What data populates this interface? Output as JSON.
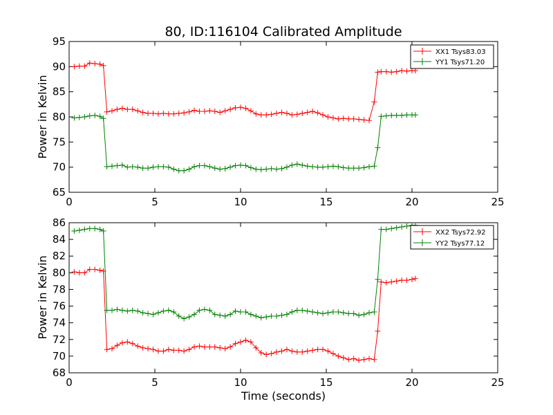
{
  "title": "80, ID:116104 Calibrated Amplitude",
  "chart_data": [
    {
      "type": "line",
      "xlabel": "",
      "ylabel": "Power in Kelvin",
      "xlim": [
        0,
        25
      ],
      "ylim": [
        65,
        95
      ],
      "xticks": [
        "0",
        "5",
        "10",
        "15",
        "20",
        "25"
      ],
      "yticks": [
        "65",
        "70",
        "75",
        "80",
        "85",
        "90",
        "95"
      ],
      "legend_position": "top-right",
      "x": [
        0.3,
        0.6,
        0.9,
        1.2,
        1.5,
        1.8,
        2.0,
        2.2,
        2.5,
        2.8,
        3.1,
        3.4,
        3.7,
        4.0,
        4.3,
        4.6,
        4.9,
        5.2,
        5.5,
        5.8,
        6.1,
        6.4,
        6.7,
        7.0,
        7.3,
        7.6,
        7.9,
        8.2,
        8.5,
        8.8,
        9.1,
        9.4,
        9.7,
        10.0,
        10.3,
        10.6,
        10.9,
        11.2,
        11.5,
        11.8,
        12.1,
        12.4,
        12.7,
        13.0,
        13.3,
        13.6,
        13.9,
        14.2,
        14.5,
        14.8,
        15.1,
        15.4,
        15.7,
        16.0,
        16.3,
        16.6,
        16.9,
        17.2,
        17.5,
        17.8,
        18.0,
        18.2,
        18.5,
        18.8,
        19.1,
        19.4,
        19.7,
        20.0,
        20.2
      ],
      "series": [
        {
          "name": "XX1 Tsys83.03",
          "color": "#ff0000",
          "values": [
            90.0,
            90.1,
            90.1,
            90.7,
            90.6,
            90.5,
            90.2,
            81.0,
            81.2,
            81.5,
            81.7,
            81.5,
            81.5,
            81.2,
            80.9,
            80.7,
            80.7,
            80.6,
            80.7,
            80.6,
            80.6,
            80.7,
            80.8,
            81.0,
            81.3,
            81.1,
            81.1,
            81.2,
            81.1,
            80.9,
            81.2,
            81.5,
            81.8,
            81.9,
            81.7,
            81.2,
            80.6,
            80.4,
            80.4,
            80.5,
            80.7,
            80.9,
            80.7,
            80.4,
            80.5,
            80.7,
            80.9,
            81.1,
            80.8,
            80.4,
            80.0,
            79.8,
            79.6,
            79.7,
            79.6,
            79.6,
            79.5,
            79.4,
            79.3,
            83.0,
            88.9,
            89.0,
            89.0,
            88.9,
            89.0,
            89.2,
            89.1,
            89.2,
            89.2
          ]
        },
        {
          "name": "YY1 Tsys71.20",
          "color": "#008000",
          "values": [
            79.8,
            79.9,
            80.0,
            80.2,
            80.3,
            80.1,
            79.7,
            70.1,
            70.2,
            70.3,
            70.4,
            70.0,
            70.1,
            70.0,
            69.8,
            69.8,
            70.0,
            70.1,
            70.1,
            70.0,
            69.6,
            69.3,
            69.3,
            69.6,
            70.1,
            70.3,
            70.3,
            70.1,
            69.8,
            69.6,
            69.7,
            70.0,
            70.3,
            70.4,
            70.3,
            69.9,
            69.6,
            69.5,
            69.6,
            69.7,
            69.6,
            69.7,
            70.0,
            70.4,
            70.6,
            70.4,
            70.2,
            70.1,
            70.0,
            70.0,
            70.1,
            70.2,
            70.1,
            69.9,
            69.8,
            69.8,
            69.8,
            69.9,
            70.1,
            70.2,
            73.9,
            80.1,
            80.2,
            80.3,
            80.3,
            80.3,
            80.4,
            80.4,
            80.4
          ]
        }
      ]
    },
    {
      "type": "line",
      "xlabel": "Time (seconds)",
      "ylabel": "Power in Kelvin",
      "xlim": [
        0,
        25
      ],
      "ylim": [
        68,
        86
      ],
      "xticks": [
        "0",
        "5",
        "10",
        "15",
        "20",
        "25"
      ],
      "yticks": [
        "68",
        "70",
        "72",
        "74",
        "76",
        "78",
        "80",
        "82",
        "84",
        "86"
      ],
      "legend_position": "top-right",
      "x": [
        0.3,
        0.6,
        0.9,
        1.2,
        1.5,
        1.8,
        2.0,
        2.2,
        2.5,
        2.8,
        3.1,
        3.4,
        3.7,
        4.0,
        4.3,
        4.6,
        4.9,
        5.2,
        5.5,
        5.8,
        6.1,
        6.4,
        6.7,
        7.0,
        7.3,
        7.6,
        7.9,
        8.2,
        8.5,
        8.8,
        9.1,
        9.4,
        9.7,
        10.0,
        10.3,
        10.6,
        10.9,
        11.2,
        11.5,
        11.8,
        12.1,
        12.4,
        12.7,
        13.0,
        13.3,
        13.6,
        13.9,
        14.2,
        14.5,
        14.8,
        15.1,
        15.4,
        15.7,
        16.0,
        16.3,
        16.6,
        16.9,
        17.2,
        17.5,
        17.8,
        18.0,
        18.2,
        18.5,
        18.8,
        19.1,
        19.4,
        19.7,
        20.0,
        20.2
      ],
      "series": [
        {
          "name": "XX2 Tsys72.92",
          "color": "#ff0000",
          "values": [
            80.1,
            80.0,
            80.0,
            80.4,
            80.4,
            80.3,
            80.2,
            70.8,
            70.9,
            71.3,
            71.6,
            71.7,
            71.5,
            71.2,
            71.0,
            70.9,
            70.8,
            70.6,
            70.6,
            70.8,
            70.7,
            70.7,
            70.6,
            70.8,
            71.1,
            71.2,
            71.1,
            71.1,
            71.1,
            71.0,
            70.9,
            71.1,
            71.5,
            71.7,
            71.9,
            71.7,
            71.0,
            70.4,
            70.2,
            70.3,
            70.5,
            70.6,
            70.8,
            70.6,
            70.5,
            70.5,
            70.6,
            70.7,
            70.8,
            70.8,
            70.6,
            70.3,
            70.0,
            69.8,
            69.6,
            69.7,
            69.5,
            69.6,
            69.7,
            69.6,
            73.0,
            78.9,
            78.8,
            78.9,
            79.0,
            79.1,
            79.1,
            79.2,
            79.3
          ]
        },
        {
          "name": "YY2 Tsys77.12",
          "color": "#008000",
          "values": [
            85.0,
            85.1,
            85.2,
            85.3,
            85.3,
            85.2,
            85.0,
            75.5,
            75.5,
            75.6,
            75.5,
            75.4,
            75.5,
            75.4,
            75.2,
            75.1,
            75.0,
            75.2,
            75.4,
            75.5,
            75.3,
            74.8,
            74.5,
            74.7,
            75.0,
            75.5,
            75.6,
            75.5,
            75.0,
            74.9,
            74.8,
            75.0,
            75.4,
            75.3,
            75.3,
            75.0,
            74.8,
            74.6,
            74.7,
            74.8,
            74.8,
            74.9,
            75.0,
            75.3,
            75.5,
            75.5,
            75.4,
            75.3,
            75.2,
            75.1,
            75.2,
            75.3,
            75.3,
            75.2,
            75.1,
            75.1,
            74.9,
            75.0,
            75.2,
            75.3,
            79.2,
            85.2,
            85.2,
            85.3,
            85.4,
            85.5,
            85.6,
            85.7,
            85.7
          ]
        }
      ]
    }
  ]
}
